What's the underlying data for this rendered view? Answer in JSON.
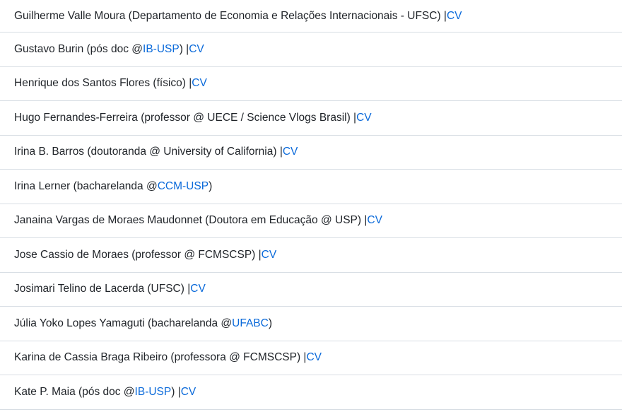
{
  "colors": {
    "text": "#1f2328",
    "link": "#0969da",
    "divider": "#d8dee4",
    "background": "#ffffff"
  },
  "people": [
    {
      "segments": [
        {
          "text": "Guilherme Valle Moura (Departamento de Economia e Relações Internacionais - UFSC) | ",
          "link": false
        },
        {
          "text": "CV",
          "link": true
        }
      ]
    },
    {
      "segments": [
        {
          "text": "Gustavo Burin (pós doc @",
          "link": false
        },
        {
          "text": "IB-USP",
          "link": true
        },
        {
          "text": " ) | ",
          "link": false
        },
        {
          "text": "CV",
          "link": true
        }
      ]
    },
    {
      "segments": [
        {
          "text": "Henrique dos Santos Flores (físico) | ",
          "link": false
        },
        {
          "text": "CV",
          "link": true
        }
      ]
    },
    {
      "segments": [
        {
          "text": "Hugo Fernandes-Ferreira (professor @ UECE / Science Vlogs Brasil) | ",
          "link": false
        },
        {
          "text": "CV",
          "link": true
        }
      ]
    },
    {
      "segments": [
        {
          "text": "Irina B. Barros (doutoranda @ University of California) | ",
          "link": false
        },
        {
          "text": "CV",
          "link": true
        }
      ]
    },
    {
      "segments": [
        {
          "text": "Irina Lerner (bacharelanda @ ",
          "link": false
        },
        {
          "text": "CCM-USP",
          "link": true
        },
        {
          "text": ")",
          "link": false
        }
      ]
    },
    {
      "segments": [
        {
          "text": "Janaina Vargas de Moraes Maudonnet (Doutora em Educação @ USP) | ",
          "link": false
        },
        {
          "text": "CV",
          "link": true
        }
      ]
    },
    {
      "segments": [
        {
          "text": "Jose Cassio de Moraes (professor @ FCMSCSP) | ",
          "link": false
        },
        {
          "text": "CV",
          "link": true
        }
      ]
    },
    {
      "segments": [
        {
          "text": "Josimari Telino de Lacerda (UFSC) | ",
          "link": false
        },
        {
          "text": "CV",
          "link": true
        }
      ]
    },
    {
      "segments": [
        {
          "text": "Júlia Yoko Lopes Yamaguti (bacharelanda @ ",
          "link": false
        },
        {
          "text": "UFABC",
          "link": true
        },
        {
          "text": ")",
          "link": false
        }
      ]
    },
    {
      "segments": [
        {
          "text": "Karina de Cassia Braga Ribeiro (professora @ FCMSCSP) | ",
          "link": false
        },
        {
          "text": "CV",
          "link": true
        }
      ]
    },
    {
      "segments": [
        {
          "text": "Kate P. Maia (pós doc @ ",
          "link": false
        },
        {
          "text": "IB-USP",
          "link": true
        },
        {
          "text": ") | ",
          "link": false
        },
        {
          "text": "CV",
          "link": true
        }
      ]
    }
  ]
}
